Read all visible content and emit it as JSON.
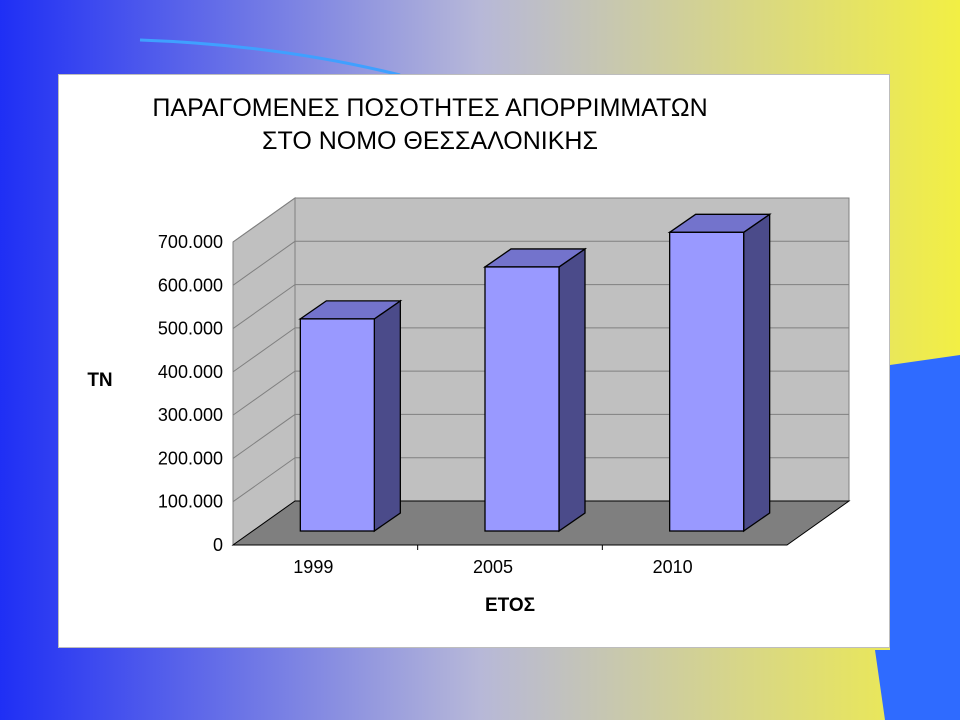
{
  "slide": {
    "background_colors": {
      "left": "#1f2ff5",
      "middle": "#b7b8d8",
      "right": "#f2ef44",
      "accent": "#2f6bff"
    }
  },
  "chart_data": {
    "type": "bar",
    "style": "3d-column",
    "title_lines": [
      "ΠΑΡΑΓΟΜΕΝΕΣ ΠΟΣΟΤΗΤΕΣ ΑΠΟΡΡΙΜΜΑΤΩΝ",
      "ΣΤΟ ΝΟΜΟ ΘΕΣΣΑΛΟΝΙΚΗΣ"
    ],
    "xlabel": "ΕΤΟΣ",
    "ylabel": "ΤΝ",
    "categories": [
      "1999",
      "2005",
      "2010"
    ],
    "values": [
      490000,
      610000,
      690000
    ],
    "ylim": [
      0,
      700000
    ],
    "yticks": [
      "0",
      "100.000",
      "200.000",
      "300.000",
      "400.000",
      "500.000",
      "600.000",
      "700.000"
    ],
    "grid": true,
    "legend": "none",
    "colors": {
      "bar_front": "#9999ff",
      "bar_side": "#4b4b8a",
      "bar_top": "#7373cc",
      "floor": "#7f7f7f",
      "wall": "#c0c0c0",
      "gridline": "#808080"
    }
  }
}
